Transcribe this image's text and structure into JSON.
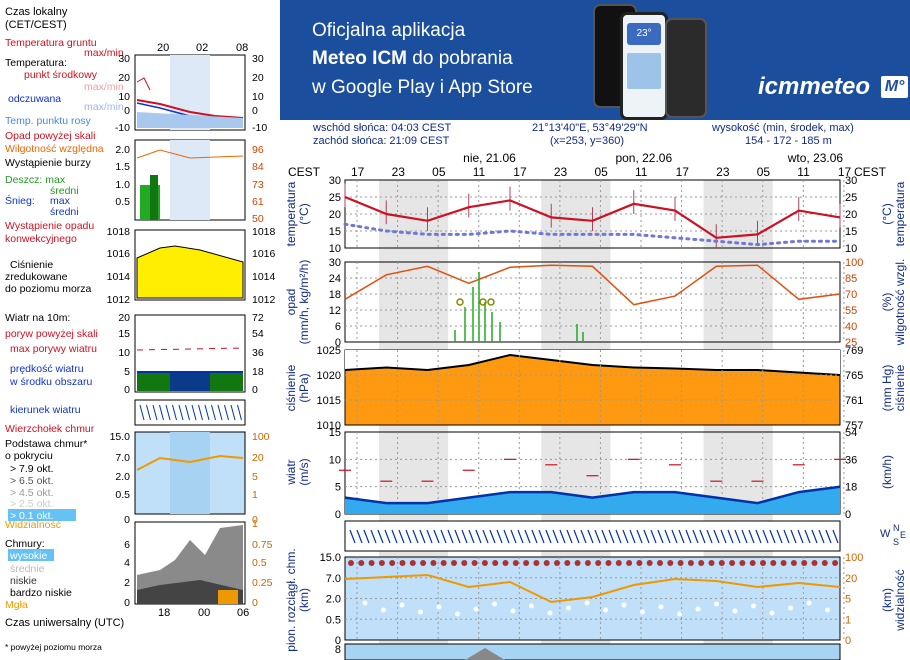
{
  "banner": {
    "line1": "Oficjalna aplikacja",
    "line2_bold": "Meteo ICM",
    "line2_rest": " do pobrania",
    "line3": "w Google Play i App Store",
    "logo_text": "icmmeteo",
    "logo_badge": "M°",
    "phone_time": "23°"
  },
  "header": {
    "sunrise": "wschód słońca: 04:03 CEST",
    "sunset": "zachód słońca: 21:09 CEST",
    "coords": "21°13'40\"E, 53°49'29\"N",
    "grid": "(x=253,  y=360)",
    "elevation_label": "wysokość (min, środek, max)",
    "elevation_values": "154 - 172 - 185 m",
    "tz": "CEST",
    "days": [
      "nie, 21.06",
      "pon, 22.06",
      "wto, 23.06"
    ],
    "hours": [
      "17",
      "23",
      "05",
      "11",
      "17",
      "23",
      "05",
      "11",
      "17",
      "23",
      "05",
      "11",
      "17"
    ]
  },
  "legend": {
    "tz_label_1": "Czas lokalny",
    "tz_label_2": "(CET/CEST)",
    "time_ticks_top": [
      "20",
      "02",
      "08"
    ],
    "time_ticks_bottom": [
      "18",
      "00",
      "06"
    ],
    "utc_label": "Czas uniwersalny (UTC)",
    "footnote": "* powyżej poziomu morza",
    "temp": {
      "l1": "Temperatura gruntu",
      "l2": "max/min",
      "l3": "Temperatura:",
      "l4": "punkt środkowy",
      "l5": "max/min",
      "l6": "odczuwana",
      "l7": "max/min",
      "l8": "Temp. punktu rosy",
      "ticks": [
        "30",
        "20",
        "10",
        "0",
        "-10"
      ]
    },
    "precip": {
      "l1": "Opad powyżej skali",
      "l2": "Wilgotność względna",
      "l3": "Wystąpienie burzy",
      "l4": "Deszcz: max",
      "l5": "średni",
      "l6": "Śnieg:",
      "l7": "max",
      "l8": "średni",
      "l9": "Wystąpienie opadu",
      "l10": "konwekcyjnego",
      "ticks_left": [
        "2.0",
        "1.5",
        "1.0",
        "0.5"
      ],
      "ticks_right": [
        "96",
        "84",
        "73",
        "61",
        "50"
      ]
    },
    "pressure": {
      "l1": "Ciśnienie",
      "l2": "zredukowane",
      "l3": "do poziomu morza",
      "ticks": [
        "1018",
        "1016",
        "1014",
        "1012"
      ]
    },
    "wind": {
      "l1": "Wiatr na 10m:",
      "l2": "poryw powyżej skali",
      "l3": "max porywy wiatru",
      "l4": "prędkość wiatru",
      "l5": "w środku obszaru",
      "ticks_left": [
        "20",
        "15",
        "10",
        "5",
        "0"
      ],
      "ticks_right": [
        "72",
        "54",
        "36",
        "18",
        "0"
      ]
    },
    "winddir": {
      "l1": "kierunek wiatru"
    },
    "cloudbase": {
      "l1": "Wierzchołek chmur",
      "l2": "Podstawa chmur*",
      "l3": "o pokryciu",
      "l4": "> 7.9 okt.",
      "l5": "> 6.5 okt.",
      "l6": "> 4.5 okt.",
      "l7": "> 2.5 okt.",
      "l8": "> 0.1 okt.",
      "l9": "Widzialność",
      "ticks_left": [
        "15.0",
        "7.0",
        "2.0",
        "0.5",
        "0"
      ],
      "ticks_right": [
        "100",
        "20",
        "5",
        "1",
        "0"
      ]
    },
    "clouds": {
      "l1": "Chmury:",
      "l2": "wysokie",
      "l3": "średnie",
      "l4": "niskie",
      "l5": "bardzo niskie",
      "l6": "Mgła",
      "ticks_left": [
        "8",
        "6",
        "4",
        "2",
        "0"
      ],
      "ticks_right": [
        "1",
        "0.75",
        "0.5",
        "0.25",
        "0"
      ]
    }
  },
  "panels": {
    "temp": {
      "left": "temperatura",
      "unit": "(°C)",
      "ticks": [
        "30",
        "25",
        "20",
        "15",
        "10"
      ]
    },
    "precip": {
      "left": "opad",
      "unit": "(mm/h, kg/m²/h)",
      "ticks_left": [
        "30",
        "24",
        "18",
        "12",
        "6",
        "0"
      ],
      "ticks_right": [
        "100",
        "85",
        "70",
        "55",
        "40",
        "25"
      ],
      "right": "wilgotność wzgl.",
      "runit": "(%)"
    },
    "pressure": {
      "left": "ciśnienie",
      "unit": "(hPa)",
      "ticks_left": [
        "1025",
        "1020",
        "1015",
        "1010"
      ],
      "ticks_right": [
        "769",
        "765",
        "761",
        "757"
      ],
      "right": "ciśnienie",
      "runit": "(mm Hg)"
    },
    "wind": {
      "left": "wiatr",
      "unit": "(m/s)",
      "ticks_left": [
        "15",
        "10",
        "5",
        "0"
      ],
      "ticks_right": [
        "54",
        "36",
        "18",
        "0"
      ],
      "runit": "(km/h)"
    },
    "winddir": {
      "label_w": "W",
      "label_n": "N",
      "label_s": "S",
      "label_e": "E"
    },
    "cloudbase": {
      "left": "pion. rozciągł. chm.",
      "unit": "(km)",
      "ticks_left": [
        "15.0",
        "7.0",
        "2.0",
        "0.5",
        "0"
      ],
      "ticks_right": [
        "100",
        "20",
        "5",
        "1",
        "0"
      ],
      "right": "widzialność",
      "runit": "(km)"
    },
    "clouds": {
      "ticks_left": [
        "8"
      ]
    }
  },
  "colors": {
    "banner": "#1b4f9e",
    "axis_text": "#102a88",
    "temp_line": "#cc1122",
    "pressure_fill": "#ff9900",
    "wind_dark": "#0033aa",
    "night": "#e6e6e6",
    "cloud_bg": "#bfe0f8"
  },
  "chart_data": [
    {
      "type": "line",
      "title": "temperatura",
      "ylabel": "(°C)",
      "ylim": [
        10,
        30
      ],
      "x": [
        "17",
        "23",
        "05",
        "11",
        "17",
        "23",
        "05",
        "11",
        "17",
        "23",
        "05",
        "11",
        "17"
      ],
      "series": [
        {
          "name": "punkt środkowy",
          "values": [
            25,
            20,
            18,
            22,
            24,
            19,
            18,
            23,
            21,
            13,
            14,
            21,
            19
          ]
        },
        {
          "name": "Temp. punktu rosy",
          "values": [
            17,
            15,
            14,
            14,
            15,
            14,
            14,
            14,
            13,
            12,
            11,
            12,
            12
          ]
        }
      ]
    },
    {
      "type": "line",
      "title": "wilgotność wzgl.",
      "ylabel": "(%)",
      "ylim": [
        25,
        100
      ],
      "x": [
        "17",
        "23",
        "05",
        "11",
        "17",
        "23",
        "05",
        "11",
        "17",
        "23",
        "05",
        "11",
        "17"
      ],
      "series": [
        {
          "name": "Wilgotność względna",
          "values": [
            65,
            88,
            96,
            80,
            95,
            97,
            96,
            60,
            68,
            96,
            97,
            65,
            70
          ]
        }
      ]
    },
    {
      "type": "area",
      "title": "ciśnienie",
      "ylabel": "(hPa)",
      "ylim": [
        1010,
        1025
      ],
      "x": [
        "17",
        "23",
        "05",
        "11",
        "17",
        "23",
        "05",
        "11",
        "17",
        "23",
        "05",
        "11",
        "17"
      ],
      "series": [
        {
          "name": "ciśnienie",
          "values": [
            1021,
            1021.5,
            1021,
            1022,
            1024,
            1023,
            1022,
            1021.5,
            1021.3,
            1021,
            1021,
            1020.5,
            1020
          ]
        }
      ]
    },
    {
      "type": "line",
      "title": "wiatr",
      "ylabel": "(m/s)",
      "ylim": [
        0,
        15
      ],
      "x": [
        "17",
        "23",
        "05",
        "11",
        "17",
        "23",
        "05",
        "11",
        "17",
        "23",
        "05",
        "11",
        "17"
      ],
      "series": [
        {
          "name": "prędkość wiatru",
          "values": [
            3,
            2,
            2,
            3,
            4,
            4,
            3,
            4,
            4,
            3,
            2,
            4,
            5
          ]
        },
        {
          "name": "max porywy wiatru",
          "values": [
            8,
            6,
            6,
            8,
            10,
            9,
            7,
            10,
            9,
            6,
            6,
            9,
            10
          ]
        }
      ]
    }
  ]
}
